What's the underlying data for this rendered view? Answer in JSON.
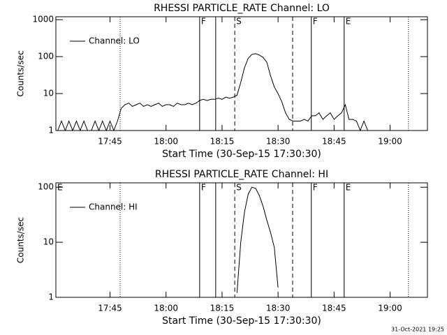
{
  "chart_data": [
    {
      "type": "line",
      "title": "RHESSI PARTICLE_RATE Channel: LO",
      "xlabel": "Start Time (30-Sep-15 17:30:30)",
      "ylabel": "Counts/sec",
      "log_y": true,
      "legend": "upper left",
      "x": [
        1051,
        1052,
        1053,
        1054,
        1055,
        1056,
        1057,
        1058,
        1059,
        1060,
        1061,
        1062,
        1063,
        1064,
        1065,
        1066,
        1067,
        1068,
        1069,
        1070,
        1071,
        1072,
        1073,
        1074,
        1075,
        1076,
        1077,
        1078,
        1079,
        1080,
        1081,
        1082,
        1083,
        1084,
        1085,
        1086,
        1087,
        1088,
        1089,
        1090,
        1091,
        1092,
        1093,
        1094,
        1095,
        1096,
        1097,
        1098,
        1099,
        1100,
        1101,
        1102,
        1103,
        1104,
        1105,
        1106,
        1107,
        1108,
        1109,
        1110,
        1111,
        1112,
        1113,
        1114,
        1115,
        1116,
        1117,
        1118,
        1119,
        1120,
        1121,
        1122,
        1123,
        1124,
        1125,
        1126,
        1127,
        1128,
        1129,
        1130,
        1131,
        1132,
        1133,
        1134,
        1135,
        1136,
        1137,
        1138,
        1139,
        1140,
        1141,
        1142,
        1143,
        1144,
        1145,
        1146,
        1147,
        1148,
        1149
      ],
      "series": [
        {
          "name": "Channel: LO",
          "color": "#000000",
          "values": [
            1,
            1.8,
            1,
            1.8,
            1,
            1.8,
            1,
            1.8,
            1,
            1,
            1.8,
            1,
            1.8,
            1,
            1.8,
            1,
            1.8,
            4,
            5,
            5.5,
            4.5,
            5,
            5.5,
            4.5,
            5,
            4.5,
            5,
            5.5,
            4.5,
            5,
            5,
            4.5,
            5.5,
            5,
            5,
            5.5,
            5,
            5.5,
            6.5,
            7,
            6.5,
            7,
            7,
            7.5,
            7,
            8,
            7.5,
            8,
            9,
            20,
            50,
            90,
            115,
            120,
            110,
            95,
            70,
            30,
            15,
            10,
            6,
            3,
            2,
            1.8,
            1.8,
            1.8,
            2,
            1.8,
            2.5,
            2.5,
            3,
            2,
            2.5,
            3,
            2,
            2.5,
            3,
            5,
            2,
            2,
            1.8,
            1,
            1.8,
            1,
            1,
            1,
            1,
            1,
            1,
            1,
            1,
            1,
            1,
            1,
            1,
            1,
            1,
            1,
            1
          ]
        }
      ],
      "xlim": [
        1050.5,
        1150
      ],
      "xticks": [
        {
          "value": 1065,
          "label": "17:45"
        },
        {
          "value": 1080,
          "label": "18:00"
        },
        {
          "value": 1095,
          "label": "18:15"
        },
        {
          "value": 1110,
          "label": "18:30"
        },
        {
          "value": 1125,
          "label": "18:45"
        },
        {
          "value": 1140,
          "label": "19:00"
        }
      ],
      "ylim": [
        1,
        1200
      ],
      "yticks": [
        1,
        10,
        100,
        1000
      ],
      "markers": [
        {
          "x": 1067.7,
          "style": "dotted"
        },
        {
          "x": 1089,
          "style": "solid",
          "label": "F"
        },
        {
          "x": 1093.3,
          "style": "solid"
        },
        {
          "x": 1098.4,
          "style": "dashed",
          "label": "S"
        },
        {
          "x": 1113.9,
          "style": "dashed"
        },
        {
          "x": 1118.9,
          "style": "solid",
          "label": "F"
        },
        {
          "x": 1127.7,
          "style": "solid",
          "label": "E"
        },
        {
          "x": 1144.9,
          "style": "dotted"
        }
      ]
    },
    {
      "type": "line",
      "title": "RHESSI PARTICLE_RATE Channel: HI",
      "xlabel": "Start Time (30-Sep-15 17:30:30)",
      "ylabel": "Counts/sec",
      "log_y": true,
      "legend": "upper left",
      "x": [
        1099,
        1100,
        1101,
        1102,
        1103,
        1104,
        1105,
        1106,
        1107,
        1108,
        1109,
        1110
      ],
      "series": [
        {
          "name": "Channel: HI",
          "color": "#000000",
          "values": [
            1.2,
            10,
            35,
            75,
            100,
            95,
            70,
            45,
            25,
            15,
            8,
            1.5
          ]
        }
      ],
      "xlim": [
        1050.5,
        1150
      ],
      "xticks": [
        {
          "value": 1065,
          "label": "17:45"
        },
        {
          "value": 1080,
          "label": "18:00"
        },
        {
          "value": 1095,
          "label": "18:15"
        },
        {
          "value": 1110,
          "label": "18:30"
        },
        {
          "value": 1125,
          "label": "18:45"
        },
        {
          "value": 1140,
          "label": "19:00"
        }
      ],
      "ylim": [
        1,
        120
      ],
      "yticks": [
        1,
        10,
        100
      ],
      "markers": [
        {
          "x": 1050.5,
          "style": "solid",
          "label": "E"
        },
        {
          "x": 1067.7,
          "style": "dotted"
        },
        {
          "x": 1089,
          "style": "solid",
          "label": "F"
        },
        {
          "x": 1093.3,
          "style": "solid"
        },
        {
          "x": 1098.4,
          "style": "dashed",
          "label": "S"
        },
        {
          "x": 1113.9,
          "style": "dashed"
        },
        {
          "x": 1118.9,
          "style": "solid",
          "label": "F"
        },
        {
          "x": 1127.7,
          "style": "solid",
          "label": "E"
        },
        {
          "x": 1144.9,
          "style": "dotted"
        }
      ]
    }
  ],
  "footer": "31-Oct-2021 19:25"
}
